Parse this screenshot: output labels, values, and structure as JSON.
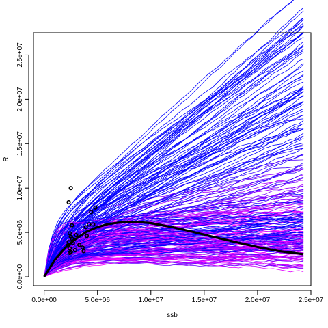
{
  "chart_data": {
    "type": "line",
    "xlabel": "ssb",
    "ylabel": "R",
    "xlim": [
      -1000000,
      25000000
    ],
    "ylim": [
      -1000000,
      27500000
    ],
    "x_ticks": [
      0,
      5000000,
      10000000,
      15000000,
      20000000,
      25000000
    ],
    "x_tick_labels": [
      "0.0e+00",
      "5.0e+06",
      "1.0e+07",
      "1.5e+07",
      "2.0e+07",
      "2.5e+07"
    ],
    "y_ticks": [
      0,
      5000000,
      10000000,
      15000000,
      20000000,
      25000000
    ],
    "y_tick_labels": [
      "0.0e+00",
      "5.0e+06",
      "1.0e+07",
      "1.5e+07",
      "2.0e+07",
      "2.5e+07"
    ],
    "grid": false,
    "series_colors": [
      "#0000ff",
      "#ff00ff"
    ],
    "fitted_curve": {
      "color": "#000000",
      "x": [
        0,
        1000000,
        2000000,
        3000000,
        4000000,
        5000000,
        6000000,
        7000000,
        8000000,
        9000000,
        10000000,
        12000000,
        14000000,
        16000000,
        18000000,
        20000000,
        22000000,
        24300000
      ],
      "y": [
        0,
        1900000,
        3300000,
        4300000,
        5100000,
        5600000,
        5950000,
        6100000,
        6200000,
        6150000,
        6050000,
        5600000,
        5050000,
        4450000,
        3900000,
        3350000,
        2900000,
        2550000
      ]
    },
    "observations": {
      "x": [
        2300000,
        2500000,
        2400000,
        2600000,
        4800000,
        4600000,
        4400000,
        4200000,
        2500000,
        2400000,
        3000000,
        3600000,
        2700000,
        2900000,
        2300000,
        2500000,
        3300000,
        3900000,
        3700000,
        2600000,
        2400000,
        2200000,
        4000000
      ],
      "y": [
        8400000,
        10000000,
        4900000,
        5800000,
        7800000,
        5900000,
        7300000,
        5900000,
        4500000,
        3200000,
        4700000,
        3300000,
        3800000,
        3000000,
        3900000,
        2800000,
        3600000,
        5600000,
        2900000,
        4300000,
        2700000,
        3500000,
        4600000
      ]
    },
    "simulation_paths": {
      "count": 240,
      "description_of_style": "stochastic recruitment trajectories, colored blue to magenta",
      "x_max": 24300000
    }
  }
}
